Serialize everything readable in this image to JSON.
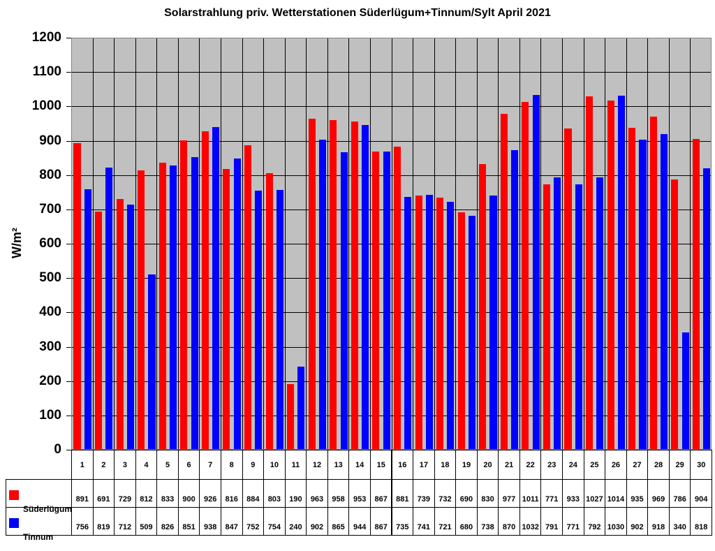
{
  "chart_data": {
    "type": "bar",
    "title": "Solarstrahlung priv. Wetterstationen Süderlügum+Tinnum/Sylt April 2021",
    "xlabel": "",
    "ylabel": "W/m²",
    "ylim": [
      0,
      1200
    ],
    "yticks": [
      0,
      100,
      200,
      300,
      400,
      500,
      600,
      700,
      800,
      900,
      1000,
      1100,
      1200
    ],
    "grid": true,
    "legend_position": "data-table-left",
    "categories": [
      "1",
      "2",
      "3",
      "4",
      "5",
      "6",
      "7",
      "8",
      "9",
      "10",
      "11",
      "12",
      "13",
      "14",
      "15",
      "16",
      "17",
      "18",
      "19",
      "20",
      "21",
      "22",
      "23",
      "24",
      "25",
      "26",
      "27",
      "28",
      "29",
      "30"
    ],
    "series": [
      {
        "name": "Süderlügum",
        "color": "#ff0000",
        "values": [
          891,
          691,
          729,
          812,
          833,
          900,
          926,
          816,
          884,
          803,
          190,
          963,
          958,
          953,
          867,
          881,
          739,
          732,
          690,
          830,
          977,
          1011,
          771,
          933,
          1027,
          1014,
          935,
          969,
          786,
          904
        ]
      },
      {
        "name": "Tinnum",
        "color": "#0000ff",
        "values": [
          756,
          819,
          712,
          509,
          826,
          851,
          938,
          847,
          752,
          754,
          240,
          902,
          865,
          944,
          867,
          735,
          741,
          721,
          680,
          738,
          870,
          1032,
          791,
          771,
          792,
          1030,
          902,
          918,
          340,
          818
        ]
      }
    ]
  },
  "colors": {
    "plot_background": "#c0c0c0",
    "suederluegum": "#ff0000",
    "tinnum": "#0000ff"
  }
}
